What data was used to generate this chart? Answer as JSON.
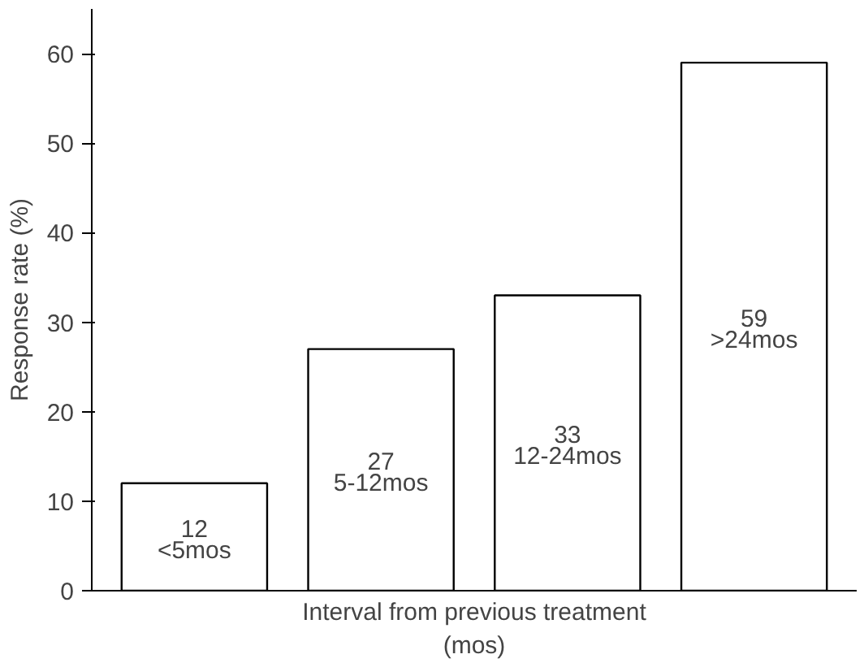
{
  "chart_data": {
    "type": "bar",
    "xlabel": "Interval from previous treatment\n(mos)",
    "ylabel": "Response rate (%)",
    "categories": [
      "<5mos",
      "5-12mos",
      "12-24mos",
      ">24mos"
    ],
    "values": [
      12,
      27,
      33,
      59
    ],
    "color": "#ffffff",
    "data_labels": true,
    "ylim": [
      0,
      65
    ],
    "yticks": [
      0,
      10,
      20,
      30,
      40,
      50,
      60
    ],
    "grid": false
  }
}
